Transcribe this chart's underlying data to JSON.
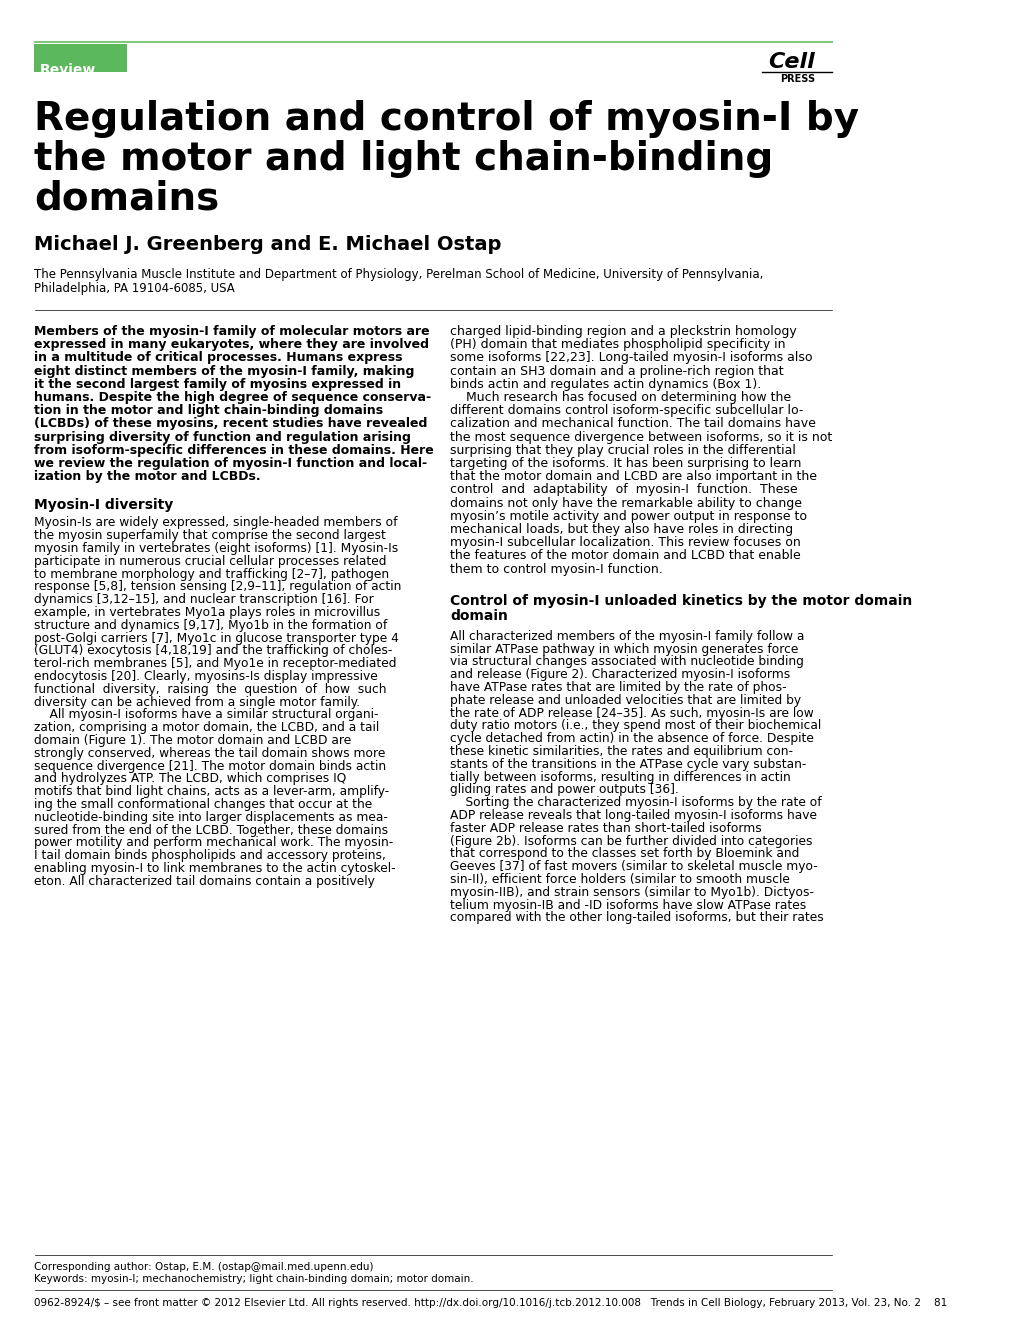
{
  "bg_color": "#ffffff",
  "green_color": "#5cb85c",
  "review_label": "Review",
  "cell_press_text": "Cell\nPRESS",
  "title_line1": "Regulation and control of myosin-I by",
  "title_line2": "the motor and light chain-binding",
  "title_line3": "domains",
  "authors": "Michael J. Greenberg and E. Michael Ostap",
  "affiliation": "The Pennsylvania Muscle Institute and Department of Physiology, Perelman School of Medicine, University of Pennsylvania,\nPhiladelphia, PA 19104-6085, USA",
  "abstract_left": "Members of the myosin-I family of molecular motors are expressed in many eukaryotes, where they are involved in a multitude of critical processes. Humans express eight distinct members of the myosin-I family, making it the second largest family of mysosins expressed in humans. Despite the high degree of sequence conservation in the motor and light chain-binding domains (LCBDs) of these myosins, recent studies have revealed surprising diversity of function and regulation arising from isoform-specific differences in these domains. Here we review the regulation of myosin-I function and localization by the motor and LCBDs.",
  "section1_title": "Myosin-I diversity",
  "section1_text": "Myosin-Is are widely expressed, single-headed members of the myosin superfamily that comprise the second largest myosin family in vertebrates (eight isoforms) [1]. Myosin-Is participate in numerous crucial cellular processes related to membrane morphology and trafficking [2–7], pathogen response [5,8], tension sensing [2,9–11], regulation of actin dynamics [3,12–15], and nuclear transcription [16]. For example, in vertebrates Myo1a plays roles in microvillus structure and dynamics [9,17], Myo1b in the formation of post-Golgi carriers [7], Myo1c in glucose transporter type 4 (GLUT4) exocytosis [4,18,19] and the trafficking of cholesterol-rich membranes [5], and Myo1e in receptor-mediated endocytosis [20]. Clearly, myosins-Is display impressive functional diversity, raising the question of how such diversity can be achieved from a single motor family.\n    All myosin-I isoforms have a similar structural organization, comprising a motor domain, the LCBD, and a tail domain (Figure 1). The motor domain and LCBD are strongly conserved, whereas the tail domain shows more sequence divergence [21]. The motor domain binds actin and hydrolyzes ATP. The LCBD, which comprises IQ motifs that bind light chains, acts as a lever-arm, amplifying the small conformational changes that occur at the nucleotide-binding site into larger displacements as measured from the end of the LCBD. Together, these domains power motility and perform mechanical work. The myosin-I tail domain binds phospholipids and accessory proteins, enabling myosin-I to link membranes to the actin cytoskeleton. All characterized tail domains contain a positively",
  "right_col_top": "charged lipid-binding region and a pleckstrin homology (PH) domain that mediates phospholipid specificity in some isoforms [22,23]. Long-tailed myosin-I isoforms also contain an SH3 domain and a proline-rich region that binds actin and regulates actin dynamics (Box 1).\n    Much research has focused on determining how the different domains control isoform-specific subcellular localization and mechanical function. The tail domains have the most sequence divergence between isoforms, so it is not surprising that they play crucial roles in the differential targeting of the isoforms. It has been surprising to learn that the motor domain and LCBD are also important in the control and adaptability of myosin-I function. These domains not only have the remarkable ability to change myosin’s motile activity and power output in response to mechanical loads, but they also have roles in directing myosin-I subcellular localization. This review focuses on the features of the motor domain and LCBD that enable them to control myosin-I function.",
  "section2_title": "Control of myosin-I unloaded kinetics by the motor domain",
  "section2_text": "All characterized members of the myosin-I family follow a similar ATPase pathway in which myosin generates force via structural changes associated with nucleotide binding and release (Figure 2). Characterized myosin-I isoforms have ATPase rates that are limited by the rate of phosphate release and unloaded velocities that are limited by the rate of ADP release [24–35]. As such, myosin-Is are low duty ratio motors (i.e., they spend most of their biochemical cycle detached from actin) in the absence of force. Despite these kinetic similarities, the rates and equilibrium constants of the transitions in the ATPase cycle vary substantially between isoforms, resulting in differences in actin gliding rates and power outputs [36].\n    Sorting the characterized myosin-I isoforms by the rate of ADP release reveals that long-tailed myosin-I isoforms have faster ADP release rates than short-tailed isoforms (Figure 2b). Isoforms can be further divided into categories that correspond to the classes set forth by Bloemink and Geeves [37] of fast movers (similar to skeletal muscle myosin-II), efficient force holders (similar to smooth muscle myosin-IIB), and strain sensors (similar to Myo1b). Dictyostelium myosin-IB and -ID isoforms have slow ATPase rates compared with the other long-tailed isoforms, but their rates",
  "footer_text": "Corresponding author: Ostap, E.M. (ostap@mail.med.upenn.edu)\nKeywords: myosin-I; mechanochemistry; light chain-binding domain; motor domain.",
  "page_info": "0962-8924/$ – see front matter © 2012 Elsevier Ltd. All rights reserved. http://dx.doi.org/10.1016/j.tcb.2012.10.008   Trends in Cell Biology, February 2013, Vol. 23, No. 2    81"
}
